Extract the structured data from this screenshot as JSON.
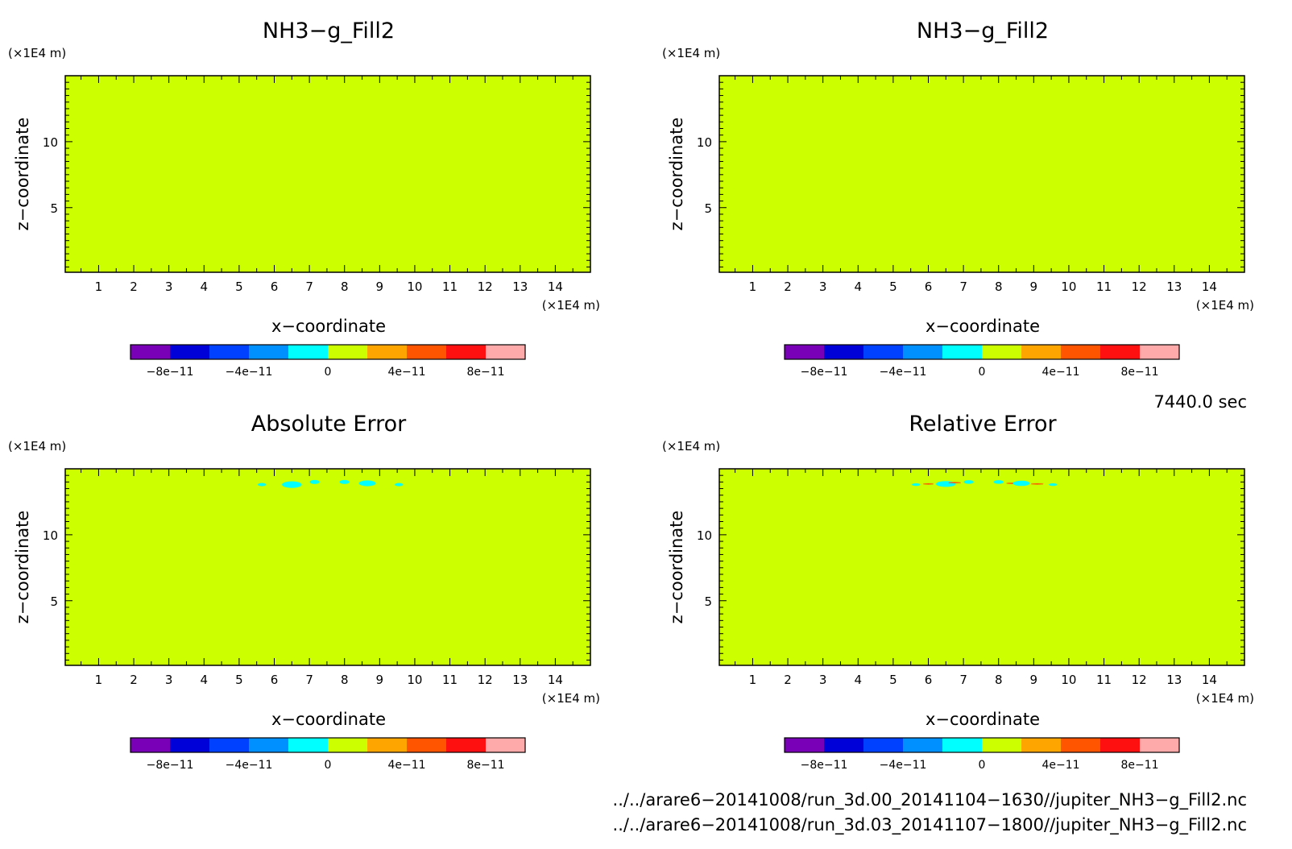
{
  "chart_data": [
    {
      "type": "heatmap",
      "title": "NH3−g_Fill2",
      "xlabel": "x−coordinate",
      "ylabel": "z−coordinate",
      "x_unit": "(×1E4 m)",
      "y_unit": "(×1E4 m)",
      "xlim": [
        0.05,
        15.0
      ],
      "ylim": [
        0.1,
        15.0
      ],
      "x_ticks": [
        1,
        2,
        3,
        4,
        5,
        6,
        7,
        8,
        9,
        10,
        11,
        12,
        13,
        14
      ],
      "y_ticks": [
        5,
        10
      ],
      "field_value": 0,
      "anomalies": []
    },
    {
      "type": "heatmap",
      "title": "NH3−g_Fill2",
      "xlabel": "x−coordinate",
      "ylabel": "z−coordinate",
      "x_unit": "(×1E4 m)",
      "y_unit": "(×1E4 m)",
      "xlim": [
        0.05,
        15.0
      ],
      "ylim": [
        0.1,
        15.0
      ],
      "x_ticks": [
        1,
        2,
        3,
        4,
        5,
        6,
        7,
        8,
        9,
        10,
        11,
        12,
        13,
        14
      ],
      "y_ticks": [
        5,
        10
      ],
      "field_value": 0,
      "anomalies": []
    },
    {
      "type": "heatmap",
      "title": "Absolute Error",
      "xlabel": "x−coordinate",
      "ylabel": "z−coordinate",
      "x_unit": "(×1E4 m)",
      "y_unit": "(×1E4 m)",
      "xlim": [
        0.05,
        15.0
      ],
      "ylim": [
        0.1,
        15.0
      ],
      "x_ticks": [
        1,
        2,
        3,
        4,
        5,
        6,
        7,
        8,
        9,
        10,
        11,
        12,
        13,
        14
      ],
      "y_ticks": [
        5,
        10
      ],
      "field_value": 0,
      "anomalies": [
        {
          "x": 5.65,
          "z": 13.8,
          "rx": 0.12,
          "rz": 0.12,
          "color": "#00ffff"
        },
        {
          "x": 6.5,
          "z": 13.8,
          "rx": 0.28,
          "rz": 0.25,
          "color": "#00ffff"
        },
        {
          "x": 7.15,
          "z": 14.0,
          "rx": 0.14,
          "rz": 0.15,
          "color": "#00ffff"
        },
        {
          "x": 8.0,
          "z": 14.0,
          "rx": 0.14,
          "rz": 0.15,
          "color": "#00ffff"
        },
        {
          "x": 8.65,
          "z": 13.9,
          "rx": 0.24,
          "rz": 0.22,
          "color": "#00ffff"
        },
        {
          "x": 9.55,
          "z": 13.8,
          "rx": 0.12,
          "rz": 0.12,
          "color": "#00ffff"
        }
      ]
    },
    {
      "type": "heatmap",
      "title": "Relative Error",
      "xlabel": "x−coordinate",
      "ylabel": "z−coordinate",
      "x_unit": "(×1E4 m)",
      "y_unit": "(×1E4 m)",
      "xlim": [
        0.05,
        15.0
      ],
      "ylim": [
        0.1,
        15.0
      ],
      "x_ticks": [
        1,
        2,
        3,
        4,
        5,
        6,
        7,
        8,
        9,
        10,
        11,
        12,
        13,
        14
      ],
      "y_ticks": [
        5,
        10
      ],
      "field_value": 0,
      "anomalies": [
        {
          "x": 5.65,
          "z": 13.8,
          "rx": 0.12,
          "rz": 0.1,
          "color": "#00ffff"
        },
        {
          "x": 6.0,
          "z": 13.85,
          "rx": 0.15,
          "rz": 0.05,
          "color": "#ff5500"
        },
        {
          "x": 6.5,
          "z": 13.85,
          "rx": 0.28,
          "rz": 0.22,
          "color": "#00ffff"
        },
        {
          "x": 6.75,
          "z": 13.95,
          "rx": 0.18,
          "rz": 0.05,
          "color": "#ff5500"
        },
        {
          "x": 7.15,
          "z": 14.0,
          "rx": 0.14,
          "rz": 0.14,
          "color": "#00ffff"
        },
        {
          "x": 8.0,
          "z": 14.0,
          "rx": 0.14,
          "rz": 0.14,
          "color": "#00ffff"
        },
        {
          "x": 8.4,
          "z": 13.9,
          "rx": 0.18,
          "rz": 0.05,
          "color": "#ff5500"
        },
        {
          "x": 8.65,
          "z": 13.9,
          "rx": 0.24,
          "rz": 0.2,
          "color": "#00ffff"
        },
        {
          "x": 9.1,
          "z": 13.85,
          "rx": 0.18,
          "rz": 0.05,
          "color": "#ff5500"
        },
        {
          "x": 9.55,
          "z": 13.8,
          "rx": 0.12,
          "rz": 0.1,
          "color": "#00ffff"
        }
      ]
    }
  ],
  "colorbar": {
    "levels": [
      -1e-10,
      -8e-11,
      -6e-11,
      -4e-11,
      -2e-11,
      0,
      2e-11,
      4e-11,
      6e-11,
      8e-11,
      1e-10
    ],
    "colors": [
      "#7a00b8",
      "#0000d8",
      "#0040ff",
      "#0090ff",
      "#00ffff",
      "#ccff00",
      "#ffa500",
      "#ff5500",
      "#ff1010",
      "#ffaaaa"
    ],
    "labels": [
      {
        "value": -8e-11,
        "text": "−8e−11"
      },
      {
        "value": -4e-11,
        "text": "−4e−11"
      },
      {
        "value": 0,
        "text": "0"
      },
      {
        "value": 4e-11,
        "text": "4e−11"
      },
      {
        "value": 8e-11,
        "text": "8e−11"
      }
    ]
  },
  "time_label": "7440.0 sec",
  "file_paths": [
    "../../arare6−20141008/run_3d.00_20141104−1630//jupiter_NH3−g_Fill2.nc",
    "../../arare6−20141008/run_3d.03_20141107−1800//jupiter_NH3−g_Fill2.nc"
  ]
}
